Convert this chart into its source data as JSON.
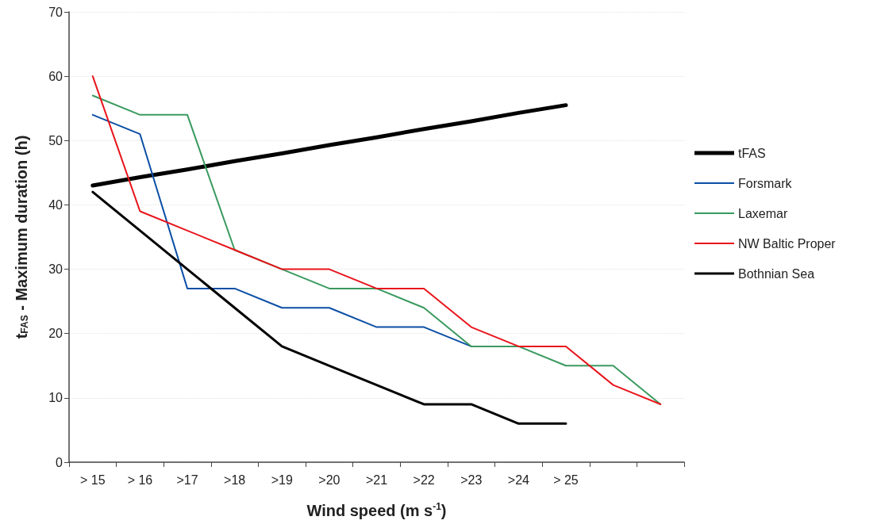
{
  "chart_data": {
    "type": "line",
    "xlabel": "Wind speed (m s$^{-1}$)",
    "ylabel": "t$_{FAS}$ - Maximum duration (h)",
    "categories": [
      "> 15",
      "> 16",
      ">17",
      ">18",
      ">19",
      ">20",
      ">21",
      ">22",
      ">23",
      ">24",
      "> 25",
      null,
      null
    ],
    "ylim": [
      0,
      70
    ],
    "yticks": [
      0,
      10,
      20,
      30,
      40,
      50,
      60,
      70
    ],
    "grid": "y",
    "legend": "right",
    "marker": "none",
    "line_style": "solid",
    "series": [
      {
        "name": "tFAS",
        "color": "#000000",
        "values": [
          43,
          44.3,
          45.5,
          46.8,
          48,
          49.3,
          50.5,
          51.8,
          53,
          54.3,
          55.5,
          null,
          null
        ]
      },
      {
        "name": "Forsmark",
        "color": "#0b4fa5",
        "values": [
          54,
          51,
          27,
          27,
          24,
          24,
          21,
          21,
          18,
          null,
          null,
          null,
          null
        ]
      },
      {
        "name": "Laxemar",
        "color": "#3a9a5f",
        "values": [
          57,
          54,
          54,
          33,
          30,
          27,
          27,
          24,
          18,
          18,
          15,
          15,
          9
        ]
      },
      {
        "name": "NW Baltic Proper",
        "color": "#e8141b",
        "values": [
          60,
          39,
          36,
          33,
          30,
          30,
          27,
          27,
          21,
          18,
          18,
          12,
          9
        ]
      },
      {
        "name": "Bothnian Sea",
        "color": "#000000",
        "values": [
          42,
          36,
          30,
          24,
          18,
          15,
          12,
          9,
          9,
          6,
          6,
          null,
          null
        ]
      }
    ]
  }
}
